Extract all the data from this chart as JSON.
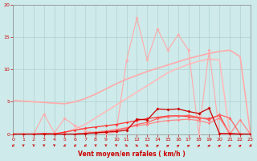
{
  "xlabel": "Vent moyen/en rafales ( km/h )",
  "background_color": "#ceeaea",
  "grid_color": "#aacccc",
  "xlim": [
    0,
    23
  ],
  "ylim": [
    0,
    20
  ],
  "xticks": [
    0,
    1,
    2,
    3,
    4,
    5,
    6,
    7,
    8,
    9,
    10,
    11,
    12,
    13,
    14,
    15,
    16,
    17,
    18,
    19,
    20,
    21,
    22,
    23
  ],
  "yticks": [
    0,
    5,
    10,
    15,
    20
  ],
  "curve_light_smooth1": {
    "x": [
      0,
      1,
      2,
      3,
      4,
      5,
      6,
      7,
      8,
      9,
      10,
      11,
      12,
      13,
      14,
      15,
      16,
      17,
      18,
      19,
      20,
      21,
      22,
      23
    ],
    "y": [
      5.2,
      5.1,
      5.0,
      4.9,
      4.8,
      4.7,
      5.0,
      5.5,
      6.2,
      7.0,
      7.8,
      8.5,
      9.1,
      9.7,
      10.2,
      10.7,
      11.2,
      11.7,
      12.1,
      12.5,
      12.8,
      13.0,
      12.0,
      0.0
    ],
    "color": "#ffaaaa",
    "lw": 1.2
  },
  "curve_light_smooth2": {
    "x": [
      0,
      1,
      2,
      3,
      4,
      5,
      6,
      7,
      8,
      9,
      10,
      11,
      12,
      13,
      14,
      15,
      16,
      17,
      18,
      19,
      20,
      21,
      22,
      23
    ],
    "y": [
      0.0,
      0.0,
      0.0,
      0.0,
      0.0,
      0.3,
      0.8,
      1.5,
      2.5,
      3.5,
      4.5,
      5.5,
      6.5,
      7.5,
      8.5,
      9.5,
      10.2,
      10.8,
      11.3,
      11.6,
      11.5,
      0.0,
      0.0,
      0.0
    ],
    "color": "#ffbbbb",
    "lw": 1.2
  },
  "curve_spiky": {
    "x": [
      0,
      1,
      2,
      3,
      4,
      5,
      6,
      7,
      8,
      9,
      10,
      11,
      12,
      13,
      14,
      15,
      16,
      17,
      18,
      19,
      20,
      21,
      22,
      23
    ],
    "y": [
      0.0,
      0.0,
      0.0,
      3.1,
      0.2,
      2.4,
      1.3,
      0.5,
      0.2,
      0.1,
      0.3,
      11.4,
      18.0,
      11.5,
      16.3,
      13.0,
      15.4,
      13.0,
      0.0,
      13.0,
      0.0,
      0.0,
      0.0,
      0.0
    ],
    "color": "#ffaaaa",
    "lw": 0.8,
    "marker": "D",
    "ms": 2.0
  },
  "curve_dark_upper": {
    "x": [
      0,
      1,
      2,
      3,
      4,
      5,
      6,
      7,
      8,
      9,
      10,
      11,
      12,
      13,
      14,
      15,
      16,
      17,
      18,
      19,
      20,
      21,
      22,
      23
    ],
    "y": [
      0,
      0,
      0,
      0,
      0,
      0,
      0,
      0.1,
      0.2,
      0.3,
      0.4,
      0.6,
      2.3,
      2.2,
      3.9,
      3.8,
      3.9,
      3.5,
      3.2,
      4.0,
      0.1,
      0.1,
      0.0,
      0.0
    ],
    "color": "#cc0000",
    "lw": 0.9,
    "marker": "D",
    "ms": 2.0
  },
  "curve_mid1": {
    "x": [
      0,
      1,
      2,
      3,
      4,
      5,
      6,
      7,
      8,
      9,
      10,
      11,
      12,
      13,
      14,
      15,
      16,
      17,
      18,
      19,
      20,
      21,
      22,
      23
    ],
    "y": [
      0,
      0,
      0,
      0,
      0,
      0,
      0,
      0.1,
      0.2,
      0.4,
      0.6,
      0.9,
      1.5,
      1.8,
      2.4,
      2.7,
      2.8,
      2.9,
      2.6,
      2.2,
      3.0,
      2.5,
      0.0,
      0.0
    ],
    "color": "#ff6666",
    "lw": 0.9,
    "marker": "D",
    "ms": 2.0
  },
  "curve_mid2": {
    "x": [
      0,
      1,
      2,
      3,
      4,
      5,
      6,
      7,
      8,
      9,
      10,
      11,
      12,
      13,
      14,
      15,
      16,
      17,
      18,
      19,
      20,
      21,
      22,
      23
    ],
    "y": [
      0,
      0,
      0,
      0.1,
      0.05,
      0.3,
      0.6,
      0.9,
      1.1,
      1.3,
      1.5,
      1.8,
      2.1,
      2.4,
      2.6,
      2.8,
      2.85,
      2.7,
      2.5,
      2.4,
      2.9,
      0.0,
      0.0,
      0.0
    ],
    "color": "#ff3333",
    "lw": 0.9,
    "marker": "D",
    "ms": 1.8
  },
  "curve_bottom": {
    "x": [
      0,
      1,
      2,
      3,
      4,
      5,
      6,
      7,
      8,
      9,
      10,
      11,
      12,
      13,
      14,
      15,
      16,
      17,
      18,
      19,
      20,
      21,
      22,
      23
    ],
    "y": [
      0,
      0,
      0,
      0,
      0,
      0,
      0,
      0,
      0,
      0,
      0,
      0,
      0,
      0,
      0,
      0,
      0,
      0,
      0,
      0,
      0,
      0,
      0,
      0
    ],
    "color": "#ff4444",
    "lw": 0.7
  },
  "curve_flat_low": {
    "x": [
      0,
      1,
      2,
      3,
      4,
      5,
      6,
      7,
      8,
      9,
      10,
      11,
      12,
      13,
      14,
      15,
      16,
      17,
      18,
      19,
      20,
      21,
      22,
      23
    ],
    "y": [
      0,
      0,
      0,
      0,
      0,
      0,
      0,
      0.15,
      0.3,
      0.5,
      0.7,
      1.0,
      1.3,
      1.5,
      1.9,
      2.1,
      2.2,
      2.3,
      2.1,
      1.7,
      2.5,
      0.0,
      2.2,
      0
    ],
    "color": "#ff8888",
    "lw": 0.9,
    "marker": "D",
    "ms": 1.8
  },
  "wind_arrows": {
    "x": [
      0,
      1,
      2,
      3,
      4,
      5,
      6,
      7,
      8,
      9,
      10,
      11,
      12,
      13,
      14,
      15,
      16,
      17,
      18,
      19,
      20,
      21,
      22,
      23
    ],
    "angles": [
      225,
      270,
      270,
      270,
      270,
      225,
      225,
      225,
      270,
      270,
      270,
      315,
      315,
      315,
      45,
      45,
      45,
      45,
      45,
      45,
      45,
      45,
      45,
      225
    ],
    "color": "#cc0000"
  }
}
